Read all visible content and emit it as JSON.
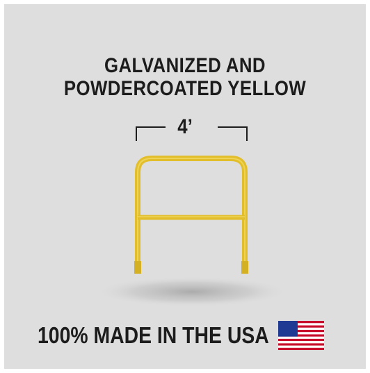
{
  "headline": {
    "line1": "GALVANIZED AND",
    "line2": "POWDERCOATED YELLOW"
  },
  "dimension": {
    "label": "4’"
  },
  "footer": {
    "tagline": "100% MADE IN THE USA",
    "flag_icon": "us-flag-icon"
  },
  "colors": {
    "background": "#dedede",
    "rail": "#e2bf2a",
    "text": "#1c1c1c"
  }
}
